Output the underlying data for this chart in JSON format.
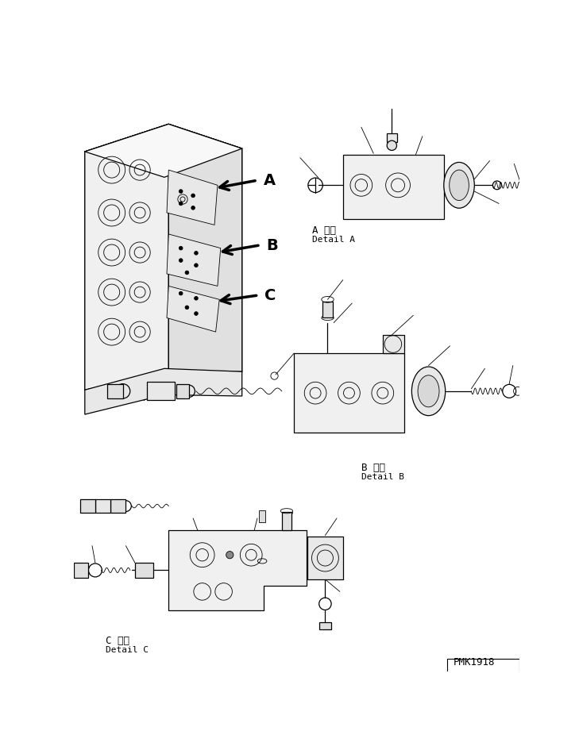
{
  "background_color": "#ffffff",
  "line_color": "#000000",
  "labels": {
    "A_japanese": "A 詳細",
    "A_english": "Detail A",
    "B_japanese": "B 詳細",
    "B_english": "Detail B",
    "C_japanese": "C 詳細",
    "C_english": "Detail C",
    "part_number": "PMK1918"
  },
  "figsize": [
    7.29,
    9.5
  ],
  "dpi": 100,
  "lw_main": 0.9,
  "lw_thin": 0.6,
  "lw_thick": 1.5
}
